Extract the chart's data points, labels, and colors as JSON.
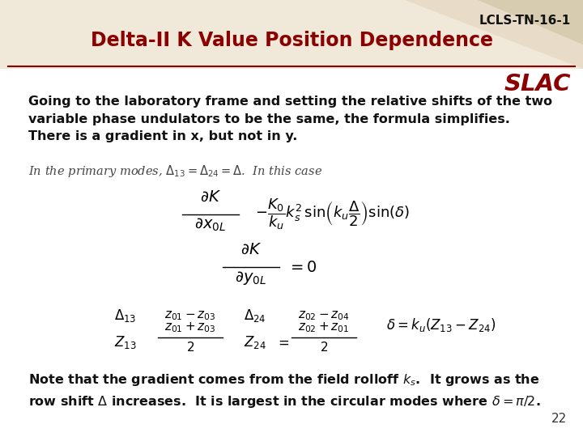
{
  "title": "Delta-II K Value Position Dependence",
  "title_color": "#8B0000",
  "doc_id": "LCLS-TN-16-1",
  "slac_text": "SLAC",
  "page_number": "22",
  "bg_color_main": "#ffffff",
  "header_bg_color": "#f0e8d8",
  "header_line_color": "#8B0000",
  "tri1_color": "#e8dcc8",
  "tri2_color": "#d8ccb0",
  "paragraph1": "Going to the laboratory frame and setting the relative shifts of the two\nvariable phase undulators to be the same, the formula simplifies.\nThere is a gradient in x, but not in y.",
  "paragraph2": "Note that the gradient comes from the field rolloff k$_s$.  It grows as the\nrow shift Δ increases.  It is largest in the circular modes where δ = π/2."
}
